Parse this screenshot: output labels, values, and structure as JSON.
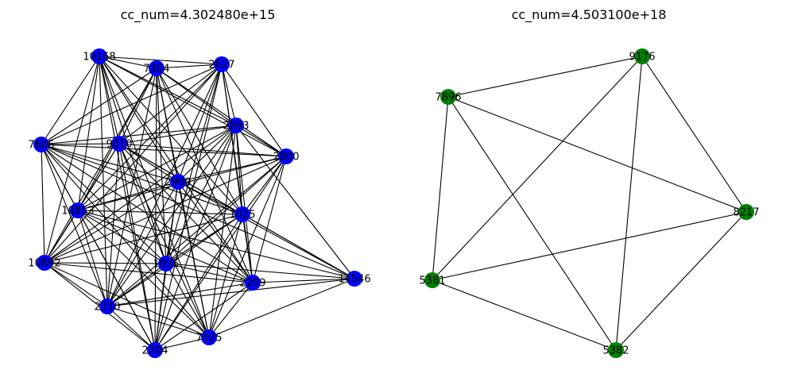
{
  "panels": [
    {
      "title": "cc_num=4.302480e+15",
      "node_color": "#0000ff",
      "nodes": [
        {
          "id": "n1",
          "label": "10168"
        },
        {
          "id": "n2",
          "label": "7304"
        },
        {
          "id": "n3",
          "label": "2627"
        },
        {
          "id": "n4",
          "label": "7606"
        },
        {
          "id": "n5",
          "label": "9010"
        },
        {
          "id": "n6",
          "label": "2893"
        },
        {
          "id": "n7",
          "label": "2800"
        },
        {
          "id": "n8",
          "label": "2900"
        },
        {
          "id": "n9",
          "label": "10853"
        },
        {
          "id": "n10",
          "label": "1025"
        },
        {
          "id": "n11",
          "label": "10892"
        },
        {
          "id": "n12",
          "label": "1035"
        },
        {
          "id": "n13",
          "label": "14546"
        },
        {
          "id": "n14",
          "label": "2209"
        },
        {
          "id": "n15",
          "label": "2210"
        },
        {
          "id": "n16",
          "label": "7025"
        },
        {
          "id": "n17",
          "label": "2204"
        }
      ],
      "edges": [
        [
          "n1",
          "n2"
        ],
        [
          "n1",
          "n3"
        ],
        [
          "n1",
          "n4"
        ],
        [
          "n1",
          "n5"
        ],
        [
          "n1",
          "n6"
        ],
        [
          "n1",
          "n7"
        ],
        [
          "n1",
          "n8"
        ],
        [
          "n1",
          "n9"
        ],
        [
          "n1",
          "n10"
        ],
        [
          "n1",
          "n11"
        ],
        [
          "n1",
          "n12"
        ],
        [
          "n1",
          "n14"
        ],
        [
          "n1",
          "n15"
        ],
        [
          "n1",
          "n16"
        ],
        [
          "n1",
          "n17"
        ],
        [
          "n2",
          "n3"
        ],
        [
          "n2",
          "n4"
        ],
        [
          "n2",
          "n5"
        ],
        [
          "n2",
          "n6"
        ],
        [
          "n2",
          "n7"
        ],
        [
          "n2",
          "n8"
        ],
        [
          "n2",
          "n9"
        ],
        [
          "n2",
          "n10"
        ],
        [
          "n2",
          "n11"
        ],
        [
          "n2",
          "n12"
        ],
        [
          "n2",
          "n14"
        ],
        [
          "n2",
          "n15"
        ],
        [
          "n2",
          "n16"
        ],
        [
          "n2",
          "n17"
        ],
        [
          "n3",
          "n4"
        ],
        [
          "n3",
          "n5"
        ],
        [
          "n3",
          "n6"
        ],
        [
          "n3",
          "n7"
        ],
        [
          "n3",
          "n8"
        ],
        [
          "n3",
          "n9"
        ],
        [
          "n3",
          "n10"
        ],
        [
          "n3",
          "n11"
        ],
        [
          "n3",
          "n12"
        ],
        [
          "n3",
          "n14"
        ],
        [
          "n3",
          "n15"
        ],
        [
          "n3",
          "n17"
        ],
        [
          "n4",
          "n5"
        ],
        [
          "n4",
          "n6"
        ],
        [
          "n4",
          "n7"
        ],
        [
          "n4",
          "n8"
        ],
        [
          "n4",
          "n9"
        ],
        [
          "n4",
          "n10"
        ],
        [
          "n4",
          "n11"
        ],
        [
          "n4",
          "n12"
        ],
        [
          "n4",
          "n13"
        ],
        [
          "n4",
          "n14"
        ],
        [
          "n4",
          "n15"
        ],
        [
          "n4",
          "n16"
        ],
        [
          "n4",
          "n17"
        ],
        [
          "n5",
          "n6"
        ],
        [
          "n5",
          "n7"
        ],
        [
          "n5",
          "n8"
        ],
        [
          "n5",
          "n9"
        ],
        [
          "n5",
          "n10"
        ],
        [
          "n5",
          "n11"
        ],
        [
          "n5",
          "n12"
        ],
        [
          "n5",
          "n13"
        ],
        [
          "n5",
          "n14"
        ],
        [
          "n5",
          "n15"
        ],
        [
          "n5",
          "n16"
        ],
        [
          "n5",
          "n17"
        ],
        [
          "n6",
          "n7"
        ],
        [
          "n6",
          "n8"
        ],
        [
          "n6",
          "n9"
        ],
        [
          "n6",
          "n10"
        ],
        [
          "n6",
          "n11"
        ],
        [
          "n6",
          "n12"
        ],
        [
          "n6",
          "n13"
        ],
        [
          "n6",
          "n14"
        ],
        [
          "n6",
          "n15"
        ],
        [
          "n6",
          "n16"
        ],
        [
          "n6",
          "n17"
        ],
        [
          "n7",
          "n8"
        ],
        [
          "n7",
          "n9"
        ],
        [
          "n7",
          "n10"
        ],
        [
          "n7",
          "n11"
        ],
        [
          "n7",
          "n12"
        ],
        [
          "n7",
          "n14"
        ],
        [
          "n7",
          "n15"
        ],
        [
          "n7",
          "n16"
        ],
        [
          "n7",
          "n17"
        ],
        [
          "n8",
          "n9"
        ],
        [
          "n8",
          "n10"
        ],
        [
          "n8",
          "n11"
        ],
        [
          "n8",
          "n12"
        ],
        [
          "n8",
          "n13"
        ],
        [
          "n8",
          "n14"
        ],
        [
          "n8",
          "n15"
        ],
        [
          "n8",
          "n16"
        ],
        [
          "n8",
          "n17"
        ],
        [
          "n9",
          "n10"
        ],
        [
          "n9",
          "n11"
        ],
        [
          "n9",
          "n12"
        ],
        [
          "n9",
          "n13"
        ],
        [
          "n9",
          "n14"
        ],
        [
          "n9",
          "n15"
        ],
        [
          "n9",
          "n16"
        ],
        [
          "n9",
          "n17"
        ],
        [
          "n10",
          "n11"
        ],
        [
          "n10",
          "n12"
        ],
        [
          "n10",
          "n13"
        ],
        [
          "n10",
          "n14"
        ],
        [
          "n10",
          "n15"
        ],
        [
          "n10",
          "n16"
        ],
        [
          "n10",
          "n17"
        ],
        [
          "n11",
          "n12"
        ],
        [
          "n11",
          "n14"
        ],
        [
          "n11",
          "n15"
        ],
        [
          "n11",
          "n16"
        ],
        [
          "n11",
          "n17"
        ],
        [
          "n12",
          "n13"
        ],
        [
          "n12",
          "n14"
        ],
        [
          "n12",
          "n15"
        ],
        [
          "n12",
          "n16"
        ],
        [
          "n12",
          "n17"
        ],
        [
          "n13",
          "n14"
        ],
        [
          "n13",
          "n15"
        ],
        [
          "n13",
          "n16"
        ],
        [
          "n14",
          "n15"
        ],
        [
          "n14",
          "n16"
        ],
        [
          "n14",
          "n17"
        ],
        [
          "n15",
          "n16"
        ],
        [
          "n15",
          "n17"
        ],
        [
          "n16",
          "n17"
        ]
      ]
    },
    {
      "title": "cc_num=4.503100e+18",
      "node_color": "#008000",
      "nodes": [
        {
          "id": "m1",
          "label": "9176"
        },
        {
          "id": "m2",
          "label": "7896"
        },
        {
          "id": "m3",
          "label": "8217"
        },
        {
          "id": "m4",
          "label": "5381"
        },
        {
          "id": "m5",
          "label": "5382"
        }
      ],
      "edges": [
        [
          "m1",
          "m2"
        ],
        [
          "m1",
          "m3"
        ],
        [
          "m1",
          "m4"
        ],
        [
          "m1",
          "m5"
        ],
        [
          "m2",
          "m3"
        ],
        [
          "m2",
          "m4"
        ],
        [
          "m2",
          "m5"
        ],
        [
          "m3",
          "m4"
        ],
        [
          "m3",
          "m5"
        ],
        [
          "m4",
          "m5"
        ]
      ]
    }
  ]
}
